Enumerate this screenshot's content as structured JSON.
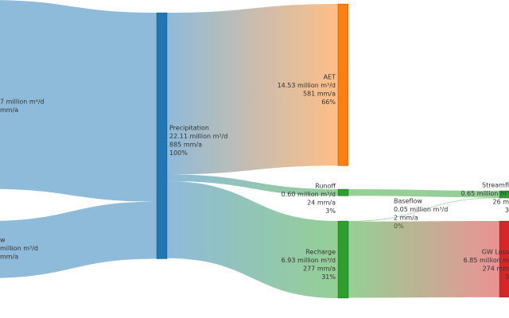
{
  "chart_data": {
    "type": "sankey",
    "nodes": [
      {
        "color": "#1f77b4",
        "label": [
          "7 million m³/d",
          "mm/a"
        ]
      },
      {
        "color": "#1f77b4",
        "label": [
          "w",
          "million m³/d",
          "mm/a"
        ]
      },
      {
        "color": "#1f77b4",
        "label": [
          "Precipitation",
          "22.11 million m³/d",
          "885 mm/a",
          "100%"
        ]
      },
      {
        "color": "#ff7f0e",
        "label": [
          "AET",
          "14.53 million m³/d",
          "581 mm/a",
          "66%"
        ]
      },
      {
        "color": "#2ca02c",
        "label": [
          "Runoff",
          "0.60 million m³/d",
          "24 mm/a",
          "3%"
        ]
      },
      {
        "color": "#2ca02c",
        "label": [
          "Recharge",
          "6.93 million m³/d",
          "277 mm/a",
          "31%"
        ]
      },
      {
        "color": "#2ca02c",
        "label": [
          "Streamfl",
          "0.65 million m³",
          "26 m",
          "3"
        ]
      },
      {
        "color": "#d62728",
        "label": [
          "GW Loss",
          "6.85 million m",
          "274 mm",
          "3"
        ]
      }
    ],
    "links": [
      {
        "source": 0,
        "target": 2,
        "value": 16.97
      },
      {
        "source": 1,
        "target": 2,
        "value": 5.14
      },
      {
        "source": 2,
        "target": 3,
        "value": 14.53
      },
      {
        "source": 2,
        "target": 4,
        "value": 0.6
      },
      {
        "source": 2,
        "target": 5,
        "value": 6.93
      },
      {
        "source": 4,
        "target": 6,
        "value": 0.6
      },
      {
        "source": 5,
        "target": 6,
        "value": 0.05,
        "label": [
          "Baseflow",
          "0.05 million m³/d",
          "2 mm/a",
          "0%"
        ]
      },
      {
        "source": 5,
        "target": 7,
        "value": 6.85
      }
    ]
  }
}
